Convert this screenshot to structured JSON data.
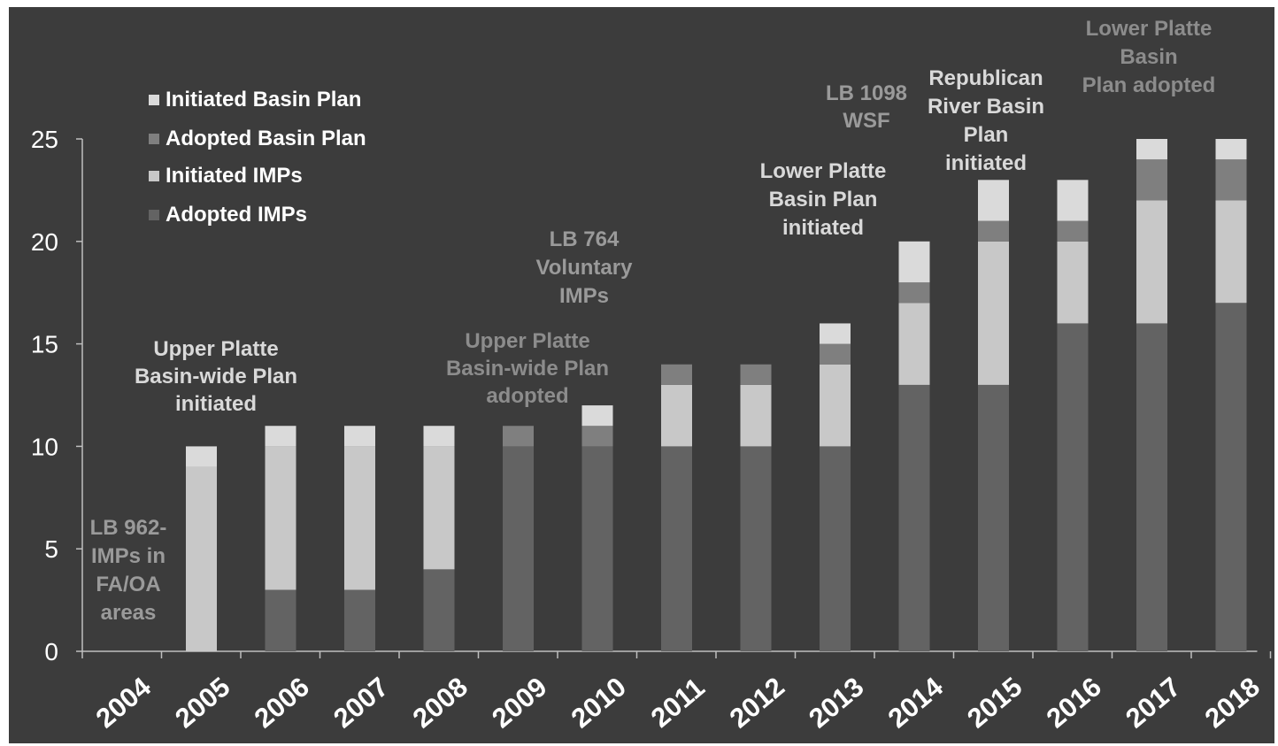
{
  "chart_data": {
    "type": "bar",
    "stacked": true,
    "categories": [
      "2004",
      "2005",
      "2006",
      "2007",
      "2008",
      "2009",
      "2010",
      "2011",
      "2012",
      "2013",
      "2014",
      "2015",
      "2016",
      "2017",
      "2018"
    ],
    "ylim": [
      0,
      25
    ],
    "yticks": [
      "0",
      "5",
      "10",
      "15",
      "20",
      "25"
    ],
    "grid": false,
    "legend_position": "top-left",
    "series": [
      {
        "name": "Adopted IMPs",
        "color": "#636363",
        "values": [
          0,
          0,
          3,
          3,
          4,
          10,
          10,
          10,
          10,
          10,
          13,
          13,
          16,
          16,
          17
        ]
      },
      {
        "name": "Initiated IMPs",
        "color": "#c8c8c8",
        "values": [
          0,
          9,
          7,
          7,
          6,
          0,
          0,
          3,
          3,
          4,
          4,
          7,
          4,
          6,
          5
        ]
      },
      {
        "name": "Adopted Basin Plan",
        "color": "#7f7f7f",
        "values": [
          0,
          0,
          0,
          0,
          0,
          1,
          1,
          1,
          1,
          1,
          1,
          1,
          1,
          2,
          2
        ]
      },
      {
        "name": "Initiated Basin Plan",
        "color": "#dadada",
        "values": [
          0,
          1,
          1,
          1,
          1,
          0,
          1,
          0,
          0,
          1,
          2,
          2,
          2,
          1,
          1
        ]
      }
    ],
    "legend_order": [
      "Initiated Basin Plan",
      "Adopted Basin Plan",
      "Initiated IMPs",
      "Adopted IMPs"
    ],
    "annotations": [
      {
        "lines": [
          "LB 962-",
          "IMPs in",
          "FA/OA",
          "areas"
        ],
        "color": "#9a9a9a"
      },
      {
        "lines": [
          "Upper Platte",
          "Basin-wide Plan",
          "initiated"
        ],
        "color": "#d9d9d9"
      },
      {
        "lines": [
          "Upper Platte",
          "Basin-wide Plan",
          "adopted"
        ],
        "color": "#8c8c8c"
      },
      {
        "lines": [
          "LB 764",
          "Voluntary",
          "IMPs"
        ],
        "color": "#9a9a9a"
      },
      {
        "lines": [
          "Lower Platte",
          "Basin Plan",
          "initiated"
        ],
        "color": "#d9d9d9"
      },
      {
        "lines": [
          "LB 1098",
          "WSF"
        ],
        "color": "#9a9a9a"
      },
      {
        "lines": [
          "Republican",
          "River Basin",
          "Plan",
          "initiated"
        ],
        "color": "#d9d9d9"
      },
      {
        "lines": [
          "Lower  Platte",
          "Basin",
          "Plan adopted"
        ],
        "color": "#8c8c8c"
      }
    ]
  }
}
